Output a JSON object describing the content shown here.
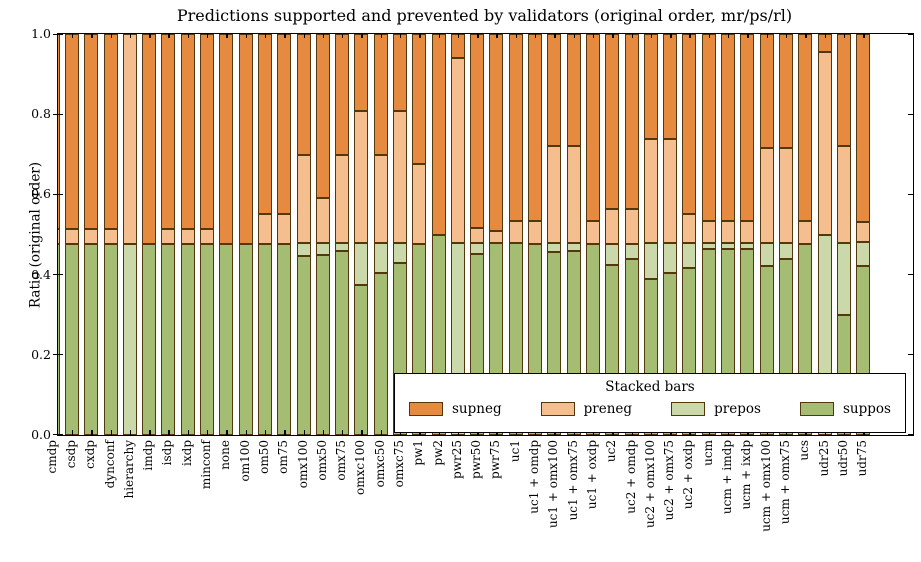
{
  "title": "Predictions supported and prevented by validators (original order, mr/ps/rl)",
  "ylabel": "Ratio (original order)",
  "yticks": [
    "0.0",
    "0.2",
    "0.4",
    "0.6",
    "0.8",
    "1.0"
  ],
  "colors": {
    "supneg": "#E58A3E",
    "preneg": "#F4BE8F",
    "prepos": "#CBD8A9",
    "suppos": "#A5BD73",
    "edge": "#53380E",
    "spine": "#000000"
  },
  "legend": {
    "title": "Stacked bars",
    "entries": [
      {
        "label": "supneg",
        "color_key": "supneg"
      },
      {
        "label": "preneg",
        "color_key": "preneg"
      },
      {
        "label": "prepos",
        "color_key": "prepos"
      },
      {
        "label": "suppos",
        "color_key": "suppos"
      }
    ]
  },
  "chart_data": {
    "type": "bar",
    "stacked": true,
    "stack_order_bottom_to_top": [
      "suppos",
      "prepos",
      "preneg",
      "supneg"
    ],
    "title": "Predictions supported and prevented by validators (original order, mr/ps/rl)",
    "xlabel": "",
    "ylabel": "Ratio (original order)",
    "ylim": [
      0,
      1
    ],
    "grid": false,
    "legend_position": "lower right",
    "categories": [
      "cmdp",
      "csdp",
      "cxdp",
      "dynconf",
      "hierarchy",
      "imdp",
      "isdp",
      "ixdp",
      "minconf",
      "none",
      "om100",
      "om50",
      "om75",
      "omx100",
      "omx50",
      "omx75",
      "omxc100",
      "omxc50",
      "omxc75",
      "pw1",
      "pw2",
      "pwr25",
      "pwr50",
      "pwr75",
      "uc1",
      "uc1 + omdp",
      "uc1 + omx100",
      "uc1 + omx75",
      "uc1 + oxdp",
      "uc2",
      "uc2 + omdp",
      "uc2 + omx100",
      "uc2 + omx75",
      "uc2 + oxdp",
      "ucm",
      "ucm + imdp",
      "ucm + ixdp",
      "ucm + omx100",
      "ucm + omx75",
      "ucs",
      "udr25",
      "udr50",
      "udr75"
    ],
    "series": [
      {
        "name": "suppos",
        "values": [
          0.476,
          0.476,
          0.476,
          0.476,
          0,
          0.476,
          0.476,
          0.476,
          0.476,
          0.476,
          0.476,
          0.476,
          0.476,
          0.446,
          0.45,
          0.46,
          0.375,
          0.405,
          0.43,
          0.476,
          0.499,
          0,
          0.452,
          0.479,
          0.479,
          0.476,
          0.456,
          0.46,
          0.476,
          0.425,
          0.44,
          0.39,
          0.405,
          0.417,
          0.465,
          0.465,
          0.465,
          0.421,
          0.438,
          0.476,
          0,
          0.3,
          0.422
        ]
      },
      {
        "name": "prepos",
        "values": [
          0,
          0,
          0,
          0,
          0.476,
          0,
          0,
          0,
          0,
          0,
          0,
          0,
          0,
          0.033,
          0.029,
          0.019,
          0.104,
          0.074,
          0.049,
          0,
          0,
          0.479,
          0.027,
          0,
          0,
          0,
          0.023,
          0.019,
          0,
          0.051,
          0.036,
          0.089,
          0.074,
          0.062,
          0.014,
          0.014,
          0.014,
          0.058,
          0.041,
          0,
          0.5,
          0.18,
          0.06
        ]
      },
      {
        "name": "preneg",
        "values": [
          0.037,
          0.037,
          0.037,
          0.037,
          0.524,
          0,
          0.037,
          0.037,
          0.037,
          0,
          0,
          0.075,
          0.075,
          0.219,
          0.111,
          0.219,
          0.329,
          0.219,
          0.329,
          0.199,
          0,
          0.461,
          0.038,
          0.03,
          0.055,
          0.058,
          0.241,
          0.241,
          0.058,
          0.087,
          0.087,
          0.258,
          0.258,
          0.071,
          0.055,
          0.055,
          0.055,
          0.237,
          0.237,
          0.058,
          0.455,
          0.241,
          0.05
        ]
      },
      {
        "name": "supneg",
        "values": [
          0.487,
          0.487,
          0.487,
          0.487,
          0,
          0.524,
          0.487,
          0.487,
          0.487,
          0.524,
          0.524,
          0.449,
          0.449,
          0.302,
          0.41,
          0.302,
          0.192,
          0.302,
          0.192,
          0.325,
          0.501,
          0.06,
          0.483,
          0.491,
          0.466,
          0.466,
          0.28,
          0.28,
          0.466,
          0.437,
          0.437,
          0.263,
          0.263,
          0.45,
          0.466,
          0.466,
          0.466,
          0.284,
          0.284,
          0.466,
          0.045,
          0.279,
          0.468
        ]
      }
    ]
  }
}
